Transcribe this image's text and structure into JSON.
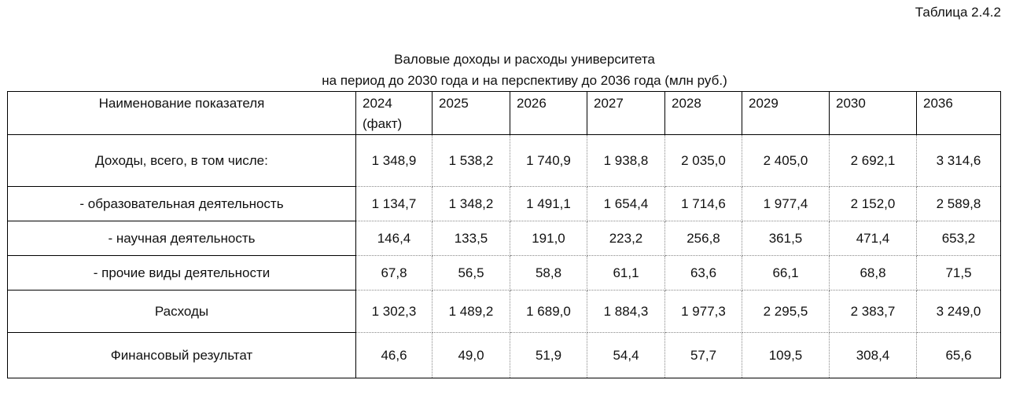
{
  "header": {
    "label": "Таблица 2.4.2",
    "title": [
      "Валовые доходы и расходы университета",
      "на период до 2030 года и на перспективу до 2036 года (млн руб.)"
    ]
  },
  "table": {
    "columns": [
      "Наименование показателя",
      "2024\n(факт)",
      "2025",
      "2026",
      "2027",
      "2028",
      "2029",
      "2030",
      "2036"
    ],
    "rows": [
      [
        "Доходы, всего, в том числе:",
        "1 348,9",
        "1 538,2",
        "1 740,9",
        "1 938,8",
        "2 035,0",
        "2 405,0",
        "2 692,1",
        "3 314,6"
      ],
      [
        "- образовательная деятельность",
        "1 134,7",
        "1 348,2",
        "1 491,1",
        "1 654,4",
        "1 714,6",
        "1 977,4",
        "2 152,0",
        "2 589,8"
      ],
      [
        "- научная деятельность",
        "146,4",
        "133,5",
        "191,0",
        "223,2",
        "256,8",
        "361,5",
        "471,4",
        "653,2"
      ],
      [
        "- прочие виды деятельности",
        "67,8",
        "56,5",
        "58,8",
        "61,1",
        "63,6",
        "66,1",
        "68,8",
        "71,5"
      ],
      [
        "Расходы",
        "1 302,3",
        "1 489,2",
        "1 689,0",
        "1 884,3",
        "1 977,3",
        "2 295,5",
        "2 383,7",
        "3 249,0"
      ],
      [
        "Финансовый результат",
        "46,6",
        "49,0",
        "51,9",
        "54,4",
        "57,7",
        "109,5",
        "308,4",
        "65,6"
      ]
    ]
  }
}
